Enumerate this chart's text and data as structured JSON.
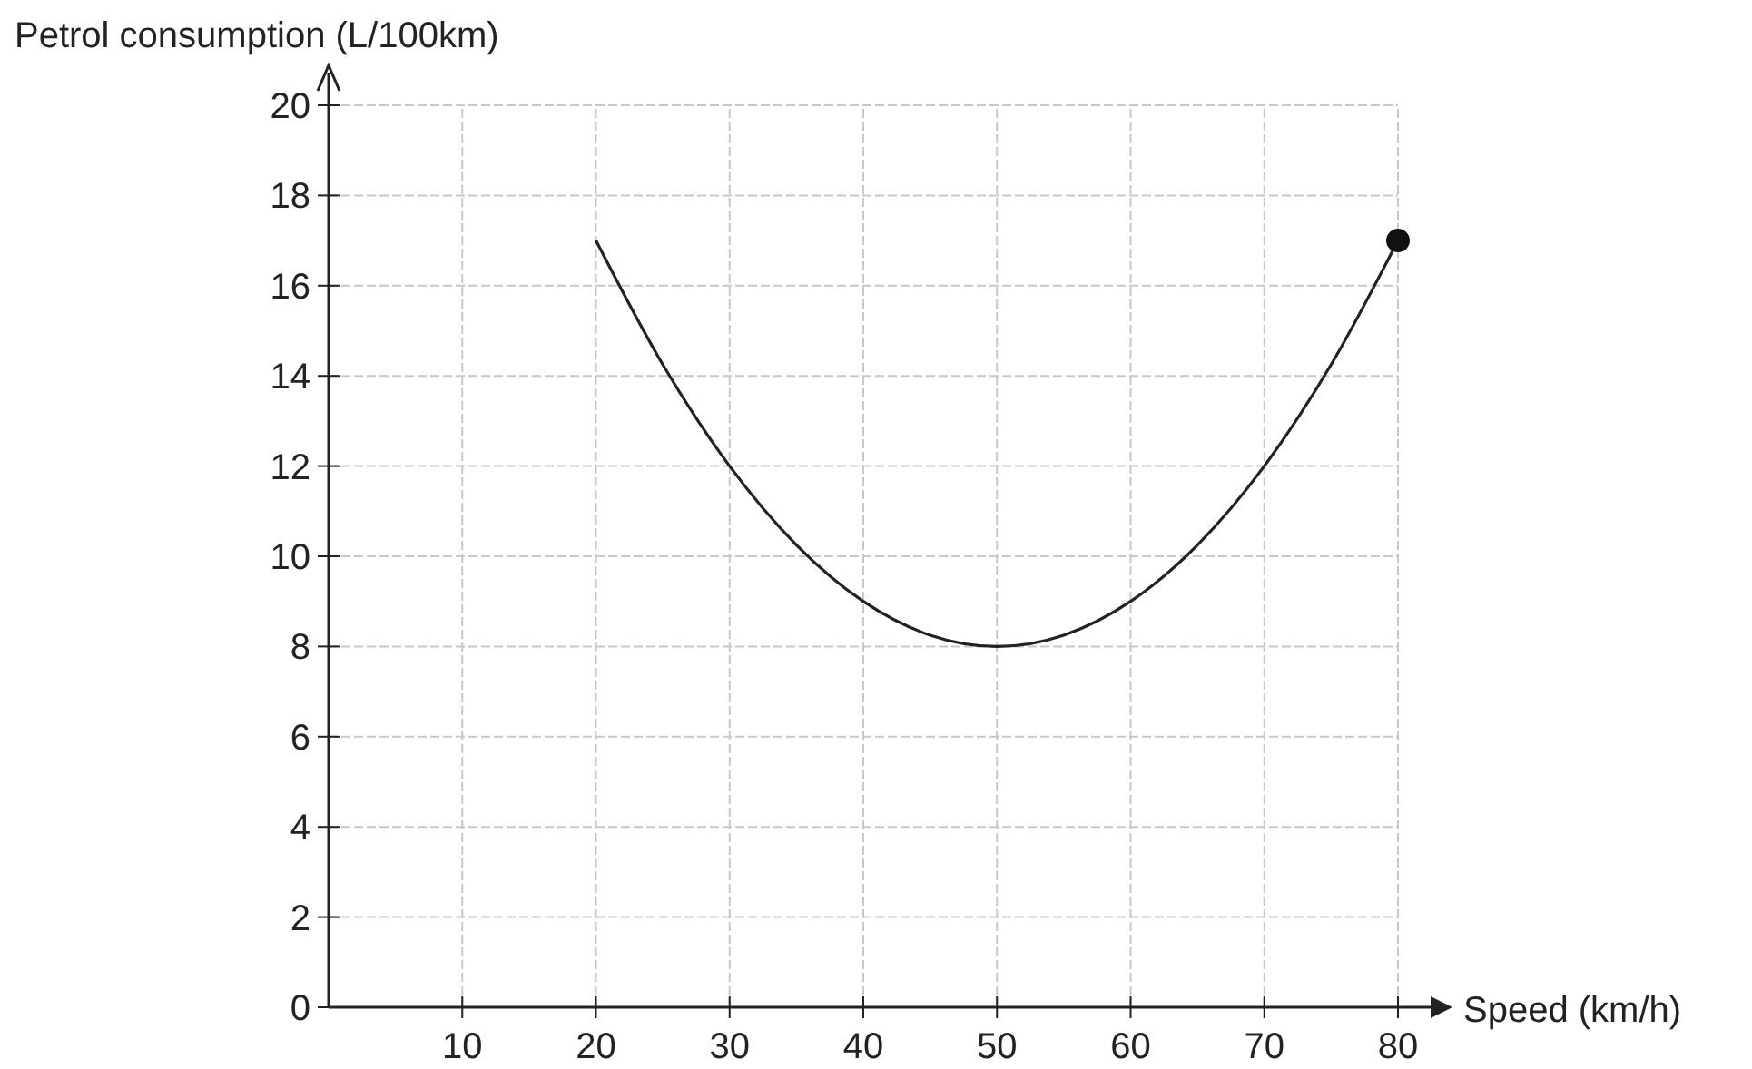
{
  "chart_data": {
    "type": "line",
    "xlabel": "Speed (km/h)",
    "ylabel": "Petrol consumption (L/100km)",
    "xlim": [
      0,
      80
    ],
    "ylim": [
      0,
      20
    ],
    "xticks": [
      10,
      20,
      30,
      40,
      50,
      60,
      70,
      80
    ],
    "yticks": [
      0,
      2,
      4,
      6,
      8,
      10,
      12,
      14,
      16,
      18,
      20
    ],
    "grid": true,
    "series": [
      {
        "color": "#222222",
        "marker": "none",
        "x": [
          20,
          25,
          30,
          35,
          40,
          45,
          50,
          55,
          60,
          65,
          70,
          75,
          80
        ],
        "values": [
          17,
          14.25,
          12,
          10.25,
          9,
          8.25,
          8,
          8.25,
          9,
          10.25,
          12,
          14.25,
          17
        ]
      },
      {
        "type": "scatter",
        "color": "#111111",
        "marker": "circle",
        "x": [
          80
        ],
        "values": [
          17
        ]
      }
    ]
  }
}
